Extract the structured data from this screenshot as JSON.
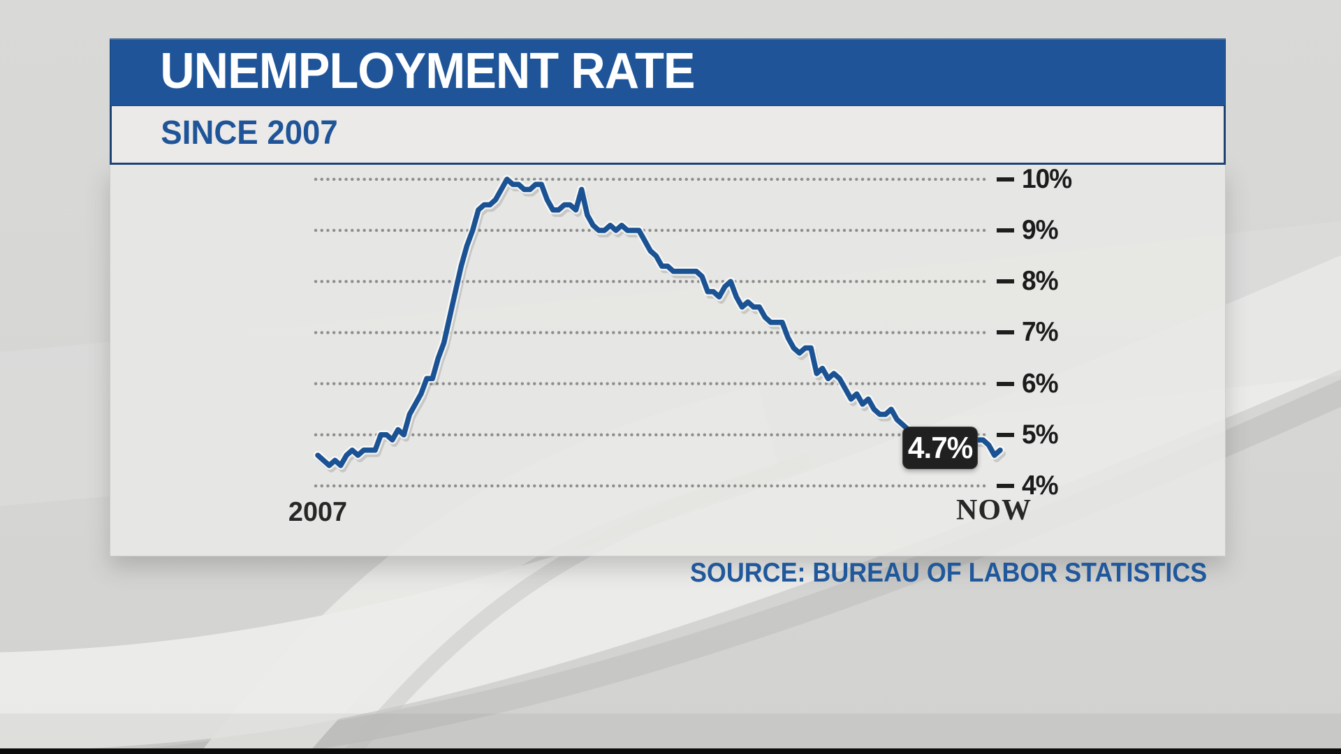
{
  "header": {
    "title": "UNEMPLOYMENT RATE",
    "subtitle": "SINCE 2007"
  },
  "footer": {
    "source": "SOURCE: BUREAU OF LABOR STATISTICS"
  },
  "chart_data": {
    "type": "line",
    "title": "UNEMPLOYMENT RATE",
    "subtitle": "SINCE 2007",
    "x_start_label": "2007",
    "x_end_label": "NOW",
    "ylim": [
      4,
      10
    ],
    "yticks": [
      10,
      9,
      8,
      7,
      6,
      5,
      4
    ],
    "ytick_labels": [
      "10%",
      "9%",
      "8%",
      "7%",
      "6%",
      "5%",
      "4%"
    ],
    "grid": "horizontal-dotted",
    "legend_position": "none",
    "current_value_label": "4.7%",
    "current_value": 4.7,
    "values": [
      4.6,
      4.5,
      4.4,
      4.5,
      4.4,
      4.6,
      4.7,
      4.6,
      4.7,
      4.7,
      4.7,
      5.0,
      5.0,
      4.9,
      5.1,
      5.0,
      5.4,
      5.6,
      5.8,
      6.1,
      6.1,
      6.5,
      6.8,
      7.3,
      7.8,
      8.3,
      8.7,
      9.0,
      9.4,
      9.5,
      9.5,
      9.6,
      9.8,
      10.0,
      9.9,
      9.9,
      9.8,
      9.8,
      9.9,
      9.9,
      9.6,
      9.4,
      9.4,
      9.5,
      9.5,
      9.4,
      9.8,
      9.3,
      9.1,
      9.0,
      9.0,
      9.1,
      9.0,
      9.1,
      9.0,
      9.0,
      9.0,
      8.8,
      8.6,
      8.5,
      8.3,
      8.3,
      8.2,
      8.2,
      8.2,
      8.2,
      8.2,
      8.1,
      7.8,
      7.8,
      7.7,
      7.9,
      8.0,
      7.7,
      7.5,
      7.6,
      7.5,
      7.5,
      7.3,
      7.2,
      7.2,
      7.2,
      6.9,
      6.7,
      6.6,
      6.7,
      6.7,
      6.2,
      6.3,
      6.1,
      6.2,
      6.1,
      5.9,
      5.7,
      5.8,
      5.6,
      5.7,
      5.5,
      5.4,
      5.4,
      5.5,
      5.3,
      5.2,
      5.1,
      5.0,
      5.0,
      5.0,
      5.0,
      4.9,
      4.9,
      5.0,
      5.0,
      4.7,
      4.9,
      4.9,
      4.9,
      4.9,
      4.8,
      4.6,
      4.7
    ]
  },
  "colors": {
    "accent": "#1f5598",
    "line": "#1a5294",
    "grid": "#8e8e8e",
    "label": "#1b1b1b",
    "badge_bg": "#202020",
    "badge_text": "#ffffff",
    "source_text": "#20589b"
  }
}
